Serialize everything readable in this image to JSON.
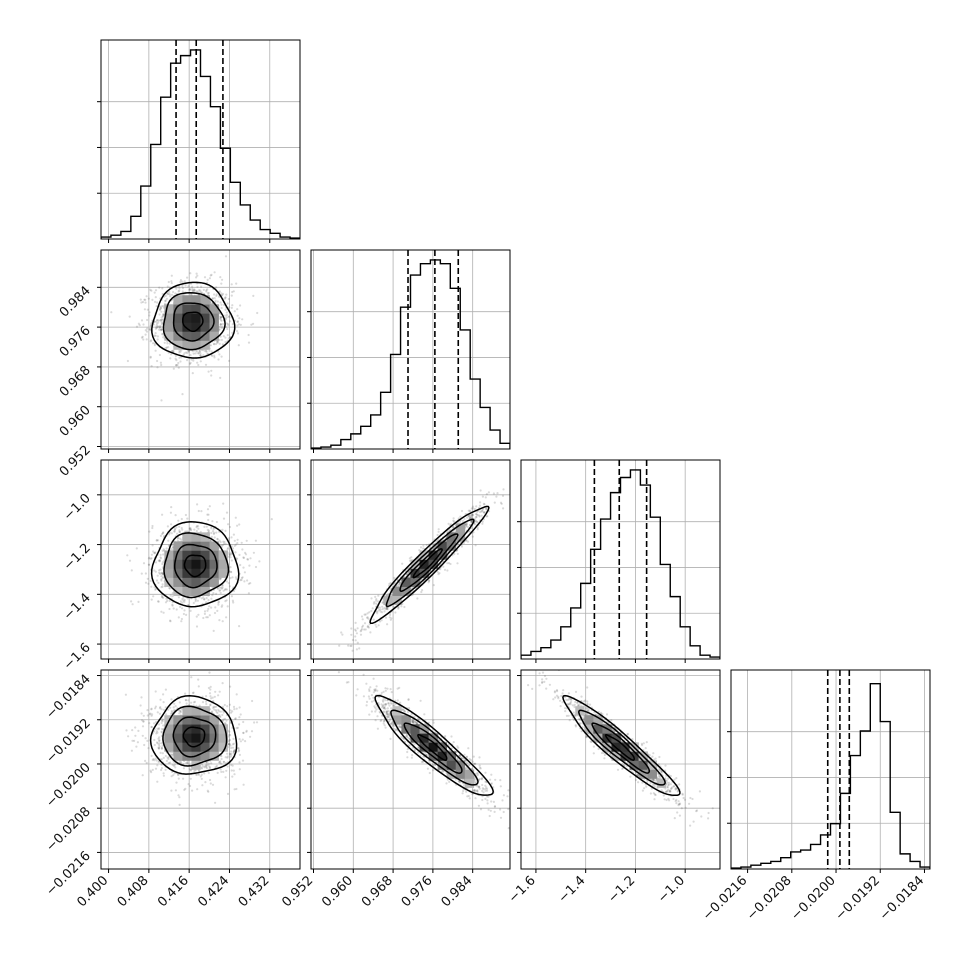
{
  "chart_data": {
    "type": "corner",
    "title": "",
    "parameters": [
      {
        "range": [
          0.3985,
          0.438
        ],
        "ticks": [
          0.4,
          0.408,
          0.416,
          0.424,
          0.432
        ],
        "tick_labels": [
          "0.400",
          "0.408",
          "0.416",
          "0.424",
          "0.432"
        ],
        "quantiles": [
          0.4134,
          0.4174,
          0.4227
        ],
        "label": ""
      },
      {
        "range": [
          0.9515,
          0.9915
        ],
        "ticks": [
          0.952,
          0.96,
          0.968,
          0.976,
          0.984
        ],
        "tick_labels": [
          "0.952",
          "0.960",
          "0.968",
          "0.976",
          "0.984"
        ],
        "quantiles": [
          0.971,
          0.9764,
          0.9811
        ],
        "label": ""
      },
      {
        "range": [
          -1.66,
          -0.86
        ],
        "ticks": [
          -1.6,
          -1.4,
          -1.2,
          -1.0
        ],
        "tick_labels": [
          "−1.6",
          "−1.4",
          "−1.2",
          "−1.0"
        ],
        "quantiles": [
          -1.365,
          -1.265,
          -1.155
        ],
        "label": ""
      },
      {
        "range": [
          -0.0219,
          -0.0183
        ],
        "ticks": [
          -0.0216,
          -0.0208,
          -0.02,
          -0.0192,
          -0.0184
        ],
        "tick_labels": [
          "−0.0216",
          "−0.0208",
          "−0.0200",
          "−0.0192",
          "−0.0184"
        ],
        "quantiles": [
          -0.02015,
          -0.01993,
          -0.01976
        ],
        "label": ""
      }
    ],
    "histograms": [
      [
        0.01,
        0.02,
        0.04,
        0.12,
        0.28,
        0.5,
        0.75,
        0.93,
        0.97,
        1.0,
        0.86,
        0.7,
        0.48,
        0.3,
        0.18,
        0.1,
        0.05,
        0.03,
        0.01,
        0.005
      ],
      [
        0.005,
        0.01,
        0.02,
        0.05,
        0.08,
        0.12,
        0.18,
        0.3,
        0.5,
        0.75,
        0.92,
        0.98,
        1.0,
        0.98,
        0.85,
        0.63,
        0.37,
        0.22,
        0.1,
        0.03
      ],
      [
        0.02,
        0.04,
        0.06,
        0.1,
        0.17,
        0.27,
        0.4,
        0.58,
        0.74,
        0.88,
        0.96,
        1.0,
        0.92,
        0.75,
        0.5,
        0.33,
        0.17,
        0.07,
        0.02,
        0.01
      ],
      [
        0.005,
        0.01,
        0.02,
        0.03,
        0.04,
        0.06,
        0.09,
        0.1,
        0.13,
        0.18,
        0.24,
        0.4,
        0.6,
        0.73,
        0.98,
        0.78,
        0.3,
        0.08,
        0.04,
        0.01
      ]
    ],
    "pairs": [
      {
        "row": 1,
        "col": 0,
        "mean": [
          0.4167,
          0.9772
        ],
        "sd": [
          0.004,
          0.0038
        ],
        "rho": 0.0
      },
      {
        "row": 2,
        "col": 0,
        "mean": [
          0.4172,
          -1.283
        ],
        "sd": [
          0.0042,
          0.085
        ],
        "rho": 0.0
      },
      {
        "row": 2,
        "col": 1,
        "mean": [
          0.975,
          -1.275
        ],
        "sd": [
          0.0058,
          0.115
        ],
        "rho": 0.96
      },
      {
        "row": 3,
        "col": 0,
        "mean": [
          0.417,
          -0.019503
        ],
        "sd": [
          0.0042,
          0.00035
        ],
        "rho": 0.0
      },
      {
        "row": 3,
        "col": 1,
        "mean": [
          0.976,
          -0.0197
        ],
        "sd": [
          0.0058,
          0.00045
        ],
        "rho": -0.92
      },
      {
        "row": 3,
        "col": 2,
        "mean": [
          -1.26,
          -0.0197
        ],
        "sd": [
          0.115,
          0.00045
        ],
        "rho": -0.94
      }
    ],
    "grid": true,
    "legend": "none"
  }
}
